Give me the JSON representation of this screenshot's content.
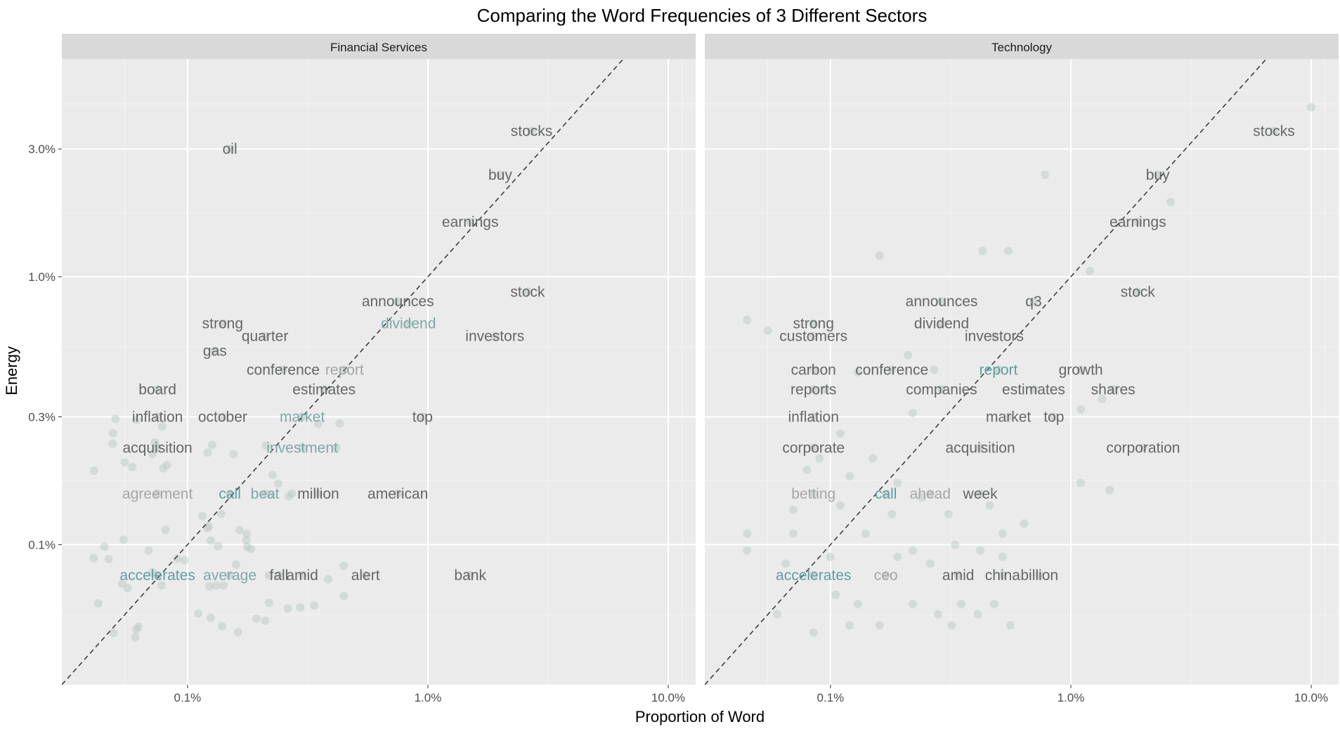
{
  "chart_data": {
    "type": "scatter",
    "title": "Comparing the Word Frequencies of 3 Different Sectors",
    "xlabel": "Proportion of Word",
    "ylabel": "Energy",
    "x_scale": "log10",
    "y_scale": "log10",
    "xlim": [
      0.0003,
      0.13
    ],
    "ylim": [
      0.0003,
      0.065
    ],
    "x_ticks": [
      {
        "value": 0.001,
        "label": "0.1%"
      },
      {
        "value": 0.01,
        "label": "1.0%"
      },
      {
        "value": 0.1,
        "label": "10.0%"
      }
    ],
    "y_ticks": [
      {
        "value": 0.001,
        "label": "0.1%"
      },
      {
        "value": 0.003,
        "label": "0.3%"
      },
      {
        "value": 0.01,
        "label": "1.0%"
      },
      {
        "value": 0.03,
        "label": "3.0%"
      }
    ],
    "reference_line": "y = x (dashed)",
    "grid": true,
    "colors": {
      "panel_bg": "#ebebeb",
      "strip_bg": "#d9d9d9",
      "grid_major": "#ffffff",
      "grid_minor": "#f4f4f4",
      "point": "#b9c6c1",
      "label_gray": "#666666",
      "label_light": "#a6a6a6",
      "label_teal": "#5f9ea0",
      "label_light_teal": "#7fa7a7"
    },
    "panels": [
      {
        "name": "Financial Services",
        "words": [
          {
            "word": "stocks",
            "x": 0.027,
            "y": 0.035,
            "color": "#666666"
          },
          {
            "word": "oil",
            "x": 0.0015,
            "y": 0.03,
            "color": "#666666"
          },
          {
            "word": "buy",
            "x": 0.02,
            "y": 0.024,
            "color": "#666666"
          },
          {
            "word": "earnings",
            "x": 0.015,
            "y": 0.016,
            "color": "#666666"
          },
          {
            "word": "stock",
            "x": 0.026,
            "y": 0.0088,
            "color": "#666666"
          },
          {
            "word": "announces",
            "x": 0.0075,
            "y": 0.0081,
            "color": "#666666"
          },
          {
            "word": "strong",
            "x": 0.0014,
            "y": 0.0067,
            "color": "#666666"
          },
          {
            "word": "dividend",
            "x": 0.0083,
            "y": 0.0067,
            "color": "#7fa7a7"
          },
          {
            "word": "quarter",
            "x": 0.0021,
            "y": 0.006,
            "color": "#666666"
          },
          {
            "word": "investors",
            "x": 0.019,
            "y": 0.006,
            "color": "#666666"
          },
          {
            "word": "gas",
            "x": 0.0013,
            "y": 0.0053,
            "color": "#666666"
          },
          {
            "word": "conference",
            "x": 0.0025,
            "y": 0.0045,
            "color": "#666666"
          },
          {
            "word": "report",
            "x": 0.0045,
            "y": 0.0045,
            "color": "#a6a6a6"
          },
          {
            "word": "board",
            "x": 0.00075,
            "y": 0.0038,
            "color": "#666666"
          },
          {
            "word": "estimates",
            "x": 0.0037,
            "y": 0.0038,
            "color": "#666666"
          },
          {
            "word": "inflation",
            "x": 0.00075,
            "y": 0.003,
            "color": "#666666"
          },
          {
            "word": "october",
            "x": 0.0014,
            "y": 0.003,
            "color": "#666666"
          },
          {
            "word": "market",
            "x": 0.003,
            "y": 0.003,
            "color": "#7fa7a7"
          },
          {
            "word": "top",
            "x": 0.0095,
            "y": 0.003,
            "color": "#666666"
          },
          {
            "word": "acquisition",
            "x": 0.00075,
            "y": 0.0023,
            "color": "#666666"
          },
          {
            "word": "investment",
            "x": 0.003,
            "y": 0.0023,
            "color": "#7fa7a7"
          },
          {
            "word": "agreement",
            "x": 0.00075,
            "y": 0.00155,
            "color": "#a6a6a6"
          },
          {
            "word": "call",
            "x": 0.0015,
            "y": 0.00155,
            "color": "#5f9ea0"
          },
          {
            "word": "beat",
            "x": 0.0021,
            "y": 0.00155,
            "color": "#7fa7a7"
          },
          {
            "word": "million",
            "x": 0.0035,
            "y": 0.00155,
            "color": "#666666"
          },
          {
            "word": "american",
            "x": 0.0075,
            "y": 0.00155,
            "color": "#666666"
          },
          {
            "word": "accelerates",
            "x": 0.00075,
            "y": 0.00077,
            "color": "#5f9ea0"
          },
          {
            "word": "average",
            "x": 0.0015,
            "y": 0.00077,
            "color": "#7fa7a7"
          },
          {
            "word": "fall",
            "x": 0.0024,
            "y": 0.00077,
            "color": "#666666"
          },
          {
            "word": "amid",
            "x": 0.003,
            "y": 0.00077,
            "color": "#666666"
          },
          {
            "word": "alert",
            "x": 0.0055,
            "y": 0.00077,
            "color": "#666666"
          },
          {
            "word": "bank",
            "x": 0.015,
            "y": 0.00077,
            "color": "#666666"
          }
        ]
      },
      {
        "name": "Technology",
        "words": [
          {
            "word": "stocks",
            "x": 0.07,
            "y": 0.035,
            "color": "#666666"
          },
          {
            "word": "buy",
            "x": 0.023,
            "y": 0.024,
            "color": "#666666"
          },
          {
            "word": "earnings",
            "x": 0.019,
            "y": 0.016,
            "color": "#666666"
          },
          {
            "word": "stock",
            "x": 0.019,
            "y": 0.0088,
            "color": "#666666"
          },
          {
            "word": "announces",
            "x": 0.0029,
            "y": 0.0081,
            "color": "#666666"
          },
          {
            "word": "q3",
            "x": 0.007,
            "y": 0.0081,
            "color": "#666666"
          },
          {
            "word": "strong",
            "x": 0.00085,
            "y": 0.0067,
            "color": "#666666"
          },
          {
            "word": "dividend",
            "x": 0.0029,
            "y": 0.0067,
            "color": "#666666"
          },
          {
            "word": "customers",
            "x": 0.00085,
            "y": 0.006,
            "color": "#666666"
          },
          {
            "word": "investors",
            "x": 0.0048,
            "y": 0.006,
            "color": "#666666"
          },
          {
            "word": "carbon",
            "x": 0.00085,
            "y": 0.0045,
            "color": "#666666"
          },
          {
            "word": "conference",
            "x": 0.0018,
            "y": 0.0045,
            "color": "#666666"
          },
          {
            "word": "report",
            "x": 0.005,
            "y": 0.0045,
            "color": "#5f9ea0"
          },
          {
            "word": "growth",
            "x": 0.011,
            "y": 0.0045,
            "color": "#666666"
          },
          {
            "word": "reports",
            "x": 0.00085,
            "y": 0.0038,
            "color": "#666666"
          },
          {
            "word": "companies",
            "x": 0.0029,
            "y": 0.0038,
            "color": "#666666"
          },
          {
            "word": "estimates",
            "x": 0.007,
            "y": 0.0038,
            "color": "#666666"
          },
          {
            "word": "shares",
            "x": 0.015,
            "y": 0.0038,
            "color": "#666666"
          },
          {
            "word": "inflation",
            "x": 0.00085,
            "y": 0.003,
            "color": "#666666"
          },
          {
            "word": "market",
            "x": 0.0055,
            "y": 0.003,
            "color": "#666666"
          },
          {
            "word": "top",
            "x": 0.0085,
            "y": 0.003,
            "color": "#666666"
          },
          {
            "word": "corporate",
            "x": 0.00085,
            "y": 0.0023,
            "color": "#666666"
          },
          {
            "word": "acquisition",
            "x": 0.0042,
            "y": 0.0023,
            "color": "#666666"
          },
          {
            "word": "corporation",
            "x": 0.02,
            "y": 0.0023,
            "color": "#666666"
          },
          {
            "word": "betting",
            "x": 0.00085,
            "y": 0.00155,
            "color": "#a6a6a6"
          },
          {
            "word": "call",
            "x": 0.0017,
            "y": 0.00155,
            "color": "#5f9ea0"
          },
          {
            "word": "ahead",
            "x": 0.0026,
            "y": 0.00155,
            "color": "#a6a6a6"
          },
          {
            "word": "week",
            "x": 0.0042,
            "y": 0.00155,
            "color": "#666666"
          },
          {
            "word": "accelerates",
            "x": 0.00085,
            "y": 0.00077,
            "color": "#5f9ea0"
          },
          {
            "word": "ceo",
            "x": 0.0017,
            "y": 0.00077,
            "color": "#a6a6a6"
          },
          {
            "word": "amid",
            "x": 0.0034,
            "y": 0.00077,
            "color": "#666666"
          },
          {
            "word": "china",
            "x": 0.0052,
            "y": 0.00077,
            "color": "#666666"
          },
          {
            "word": "billion",
            "x": 0.0074,
            "y": 0.00077,
            "color": "#666666"
          }
        ],
        "extra_points": [
          {
            "x": 0.1,
            "y": 0.043
          },
          {
            "x": 0.026,
            "y": 0.019
          },
          {
            "x": 0.0078,
            "y": 0.024
          },
          {
            "x": 0.0016,
            "y": 0.012
          },
          {
            "x": 0.0043,
            "y": 0.0125
          },
          {
            "x": 0.0055,
            "y": 0.0125
          },
          {
            "x": 0.012,
            "y": 0.0105
          },
          {
            "x": 0.00045,
            "y": 0.0069
          },
          {
            "x": 0.00055,
            "y": 0.0063
          },
          {
            "x": 0.011,
            "y": 0.0032
          },
          {
            "x": 0.0135,
            "y": 0.0035
          },
          {
            "x": 0.0008,
            "y": 0.0019
          },
          {
            "x": 0.011,
            "y": 0.0017
          },
          {
            "x": 0.0145,
            "y": 0.0016
          },
          {
            "x": 0.00045,
            "y": 0.0011
          },
          {
            "x": 0.00045,
            "y": 0.00095
          },
          {
            "x": 0.00065,
            "y": 0.00085
          },
          {
            "x": 0.0007,
            "y": 0.0011
          },
          {
            "x": 0.001,
            "y": 0.0009
          },
          {
            "x": 0.0014,
            "y": 0.0011
          },
          {
            "x": 0.0019,
            "y": 0.0009
          },
          {
            "x": 0.0022,
            "y": 0.00095
          },
          {
            "x": 0.0026,
            "y": 0.00085
          },
          {
            "x": 0.0033,
            "y": 0.001
          },
          {
            "x": 0.0042,
            "y": 0.00095
          },
          {
            "x": 0.0052,
            "y": 0.0011
          },
          {
            "x": 0.0018,
            "y": 0.0013
          },
          {
            "x": 0.0011,
            "y": 0.0014
          },
          {
            "x": 0.0007,
            "y": 0.00135
          },
          {
            "x": 0.00105,
            "y": 0.00065
          },
          {
            "x": 0.0013,
            "y": 0.0006
          },
          {
            "x": 0.0022,
            "y": 0.0006
          },
          {
            "x": 0.0028,
            "y": 0.00055
          },
          {
            "x": 0.0041,
            "y": 0.00055
          },
          {
            "x": 0.0056,
            "y": 0.0005
          },
          {
            "x": 0.0032,
            "y": 0.0005
          },
          {
            "x": 0.00085,
            "y": 0.00047
          },
          {
            "x": 0.0012,
            "y": 0.0005
          },
          {
            "x": 0.0006,
            "y": 0.00055
          },
          {
            "x": 0.0016,
            "y": 0.0005
          },
          {
            "x": 0.0035,
            "y": 0.0006
          },
          {
            "x": 0.0048,
            "y": 0.0006
          },
          {
            "x": 0.0024,
            "y": 0.0015
          },
          {
            "x": 0.0015,
            "y": 0.0021
          },
          {
            "x": 0.0022,
            "y": 0.0031
          },
          {
            "x": 0.0011,
            "y": 0.0026
          },
          {
            "x": 0.0009,
            "y": 0.0021
          },
          {
            "x": 0.0012,
            "y": 0.0018
          },
          {
            "x": 0.0019,
            "y": 0.0017
          },
          {
            "x": 0.0031,
            "y": 0.0013
          },
          {
            "x": 0.0046,
            "y": 0.0014
          },
          {
            "x": 0.0064,
            "y": 0.0012
          },
          {
            "x": 0.0052,
            "y": 0.0009
          },
          {
            "x": 0.00095,
            "y": 0.0038
          },
          {
            "x": 0.0013,
            "y": 0.0044
          },
          {
            "x": 0.0021,
            "y": 0.0051
          },
          {
            "x": 0.0027,
            "y": 0.0045
          }
        ]
      }
    ]
  }
}
